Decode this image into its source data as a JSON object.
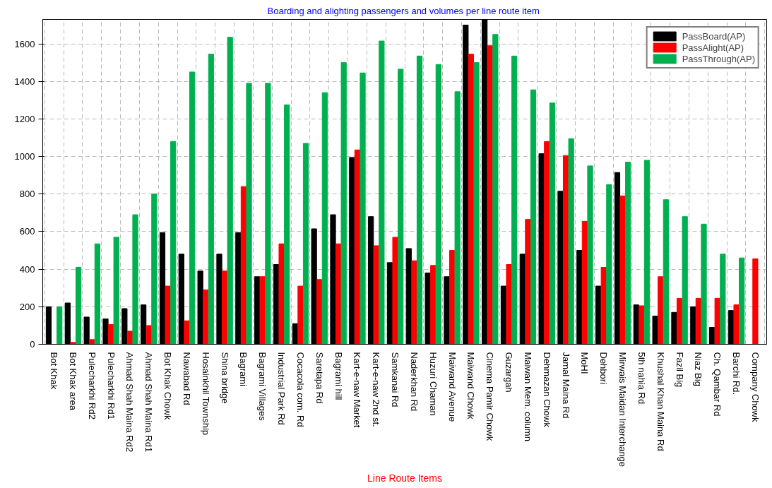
{
  "chart_data": {
    "type": "bar",
    "title": "Boarding and alighting passengers and  volumes per line route item",
    "xlabel": "Line Route Items",
    "categories": [
      "Bot Khak",
      "Bot Khak area",
      "Pulecharkhi Rd2",
      "Pulecharkhi Rd1",
      "Ahmad Shah Maina Rd2",
      "Ahmad Shah Maina Rd1",
      "Bot Khak Chowk",
      "Nawabad Rd",
      "Hosainkhil Township",
      "Shina bridge",
      "Bagrami",
      "Bagrami Villages",
      "Industrial Park Rd",
      "Cocacola com. Rd",
      "Saretapa Rd",
      "Bagrami hill",
      "Kart-e-naw Market",
      "Kart-e-naw 2nd st.",
      "Samkanai Rd",
      "Naderkhan Rd",
      "Huzuri Chaman",
      "Maiwand Avenue",
      "Maiwand Chowk",
      "Cinema Pamir Chowk",
      "Guzargah",
      "Maiwan Mem. column",
      "Dehmazan Chowk",
      "Jamal Maina Rd",
      "MoHI",
      "Dehbori",
      "Mirwais Maidan Interchange",
      "5th nahia Rd",
      "Khushal Khan Maina Rd",
      "Fazil Big",
      "Niaz Big",
      "Ch. Qambar Rd",
      "Barchi Rd.",
      "Company Chowk"
    ],
    "series": [
      {
        "name": "PassBoard(AP)",
        "color": "#000000",
        "values": [
          200,
          220,
          145,
          135,
          190,
          210,
          595,
          480,
          390,
          480,
          595,
          360,
          425,
          110,
          615,
          690,
          995,
          680,
          435,
          510,
          380,
          360,
          1700,
          1730,
          310,
          480,
          1015,
          815,
          500,
          310,
          915,
          210,
          150,
          170,
          200,
          90,
          180,
          null
        ]
      },
      {
        "name": "PassAlight(AP)",
        "color": "#ff0000",
        "values": [
          null,
          10,
          25,
          105,
          70,
          100,
          310,
          125,
          290,
          390,
          840,
          360,
          535,
          310,
          345,
          535,
          1035,
          525,
          570,
          445,
          420,
          500,
          1545,
          1590,
          425,
          665,
          1080,
          1005,
          655,
          410,
          790,
          205,
          360,
          245,
          245,
          245,
          210,
          455
        ]
      },
      {
        "name": "PassThrough(AP)",
        "color": "#00b050",
        "values": [
          200,
          410,
          535,
          570,
          690,
          800,
          1080,
          1450,
          1545,
          1635,
          1390,
          1390,
          1275,
          1070,
          1340,
          1500,
          1445,
          1615,
          1465,
          1535,
          1490,
          1345,
          1500,
          1650,
          1535,
          1355,
          1285,
          1095,
          950,
          850,
          970,
          980,
          770,
          680,
          640,
          480,
          460,
          null
        ]
      }
    ],
    "ylim": [
      0,
      1730
    ],
    "yticks": [
      0,
      200,
      400,
      600,
      800,
      1000,
      1200,
      1400,
      1600
    ],
    "grid": true,
    "legend": "top right"
  }
}
